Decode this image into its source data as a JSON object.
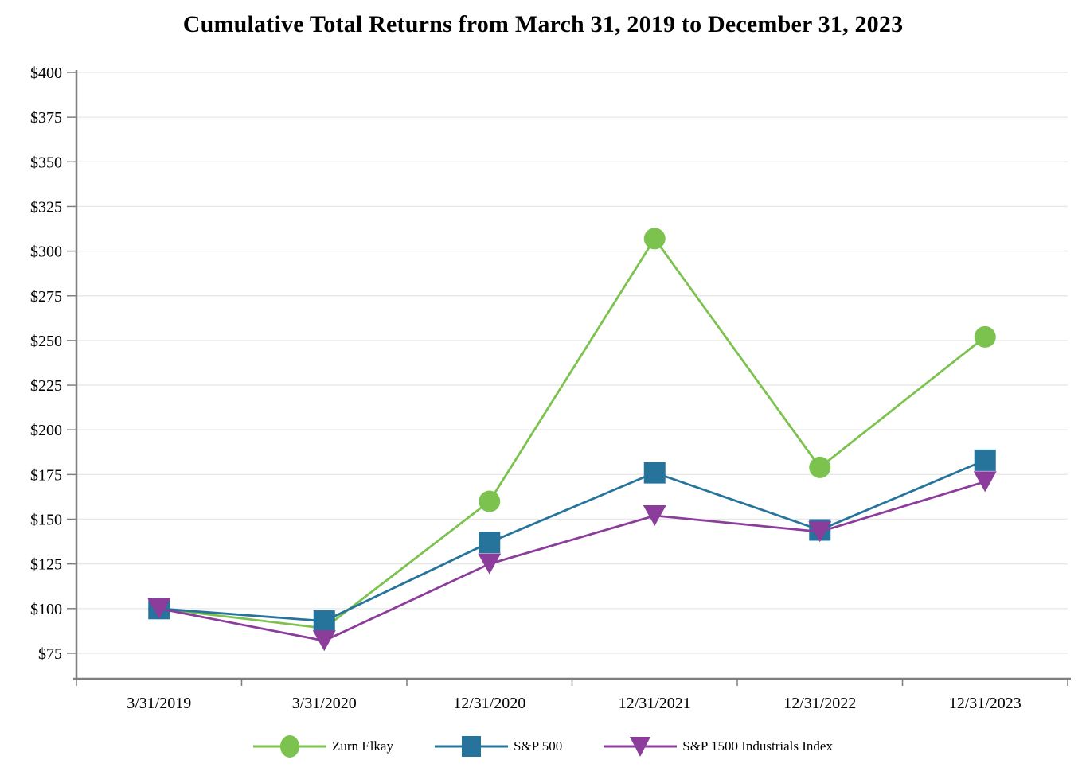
{
  "chart_data": {
    "type": "line",
    "title": "Cumulative Total Returns from March 31, 2019 to December 31, 2023",
    "categories": [
      "3/31/2019",
      "3/31/2020",
      "12/31/2020",
      "12/31/2021",
      "12/31/2022",
      "12/31/2023"
    ],
    "series": [
      {
        "name": "Zurn Elkay",
        "marker": "circle",
        "color": "#7CC24E",
        "values": [
          100,
          89,
          160,
          307,
          179,
          252
        ]
      },
      {
        "name": "S&P 500",
        "marker": "square",
        "color": "#26739C",
        "values": [
          100,
          93,
          137,
          176,
          144,
          183
        ]
      },
      {
        "name": "S&P 1500 Industrials Index",
        "marker": "triangle-down",
        "color": "#8C3C9B",
        "values": [
          100,
          82,
          125,
          152,
          143,
          171
        ]
      }
    ],
    "y_axis": {
      "prefix": "$",
      "tick_min": 75,
      "tick_max": 400,
      "tick_step": 25
    },
    "ylim": [
      61,
      402
    ],
    "xlabel": "",
    "ylabel": "",
    "grid": "horizontal",
    "legend_position": "bottom"
  },
  "colors": {
    "background": "#FFFFFF",
    "axis_line": "#7F7F7F",
    "gridline": "#E8E8E8",
    "tick": "#7F7F7F",
    "text": "#000000"
  }
}
